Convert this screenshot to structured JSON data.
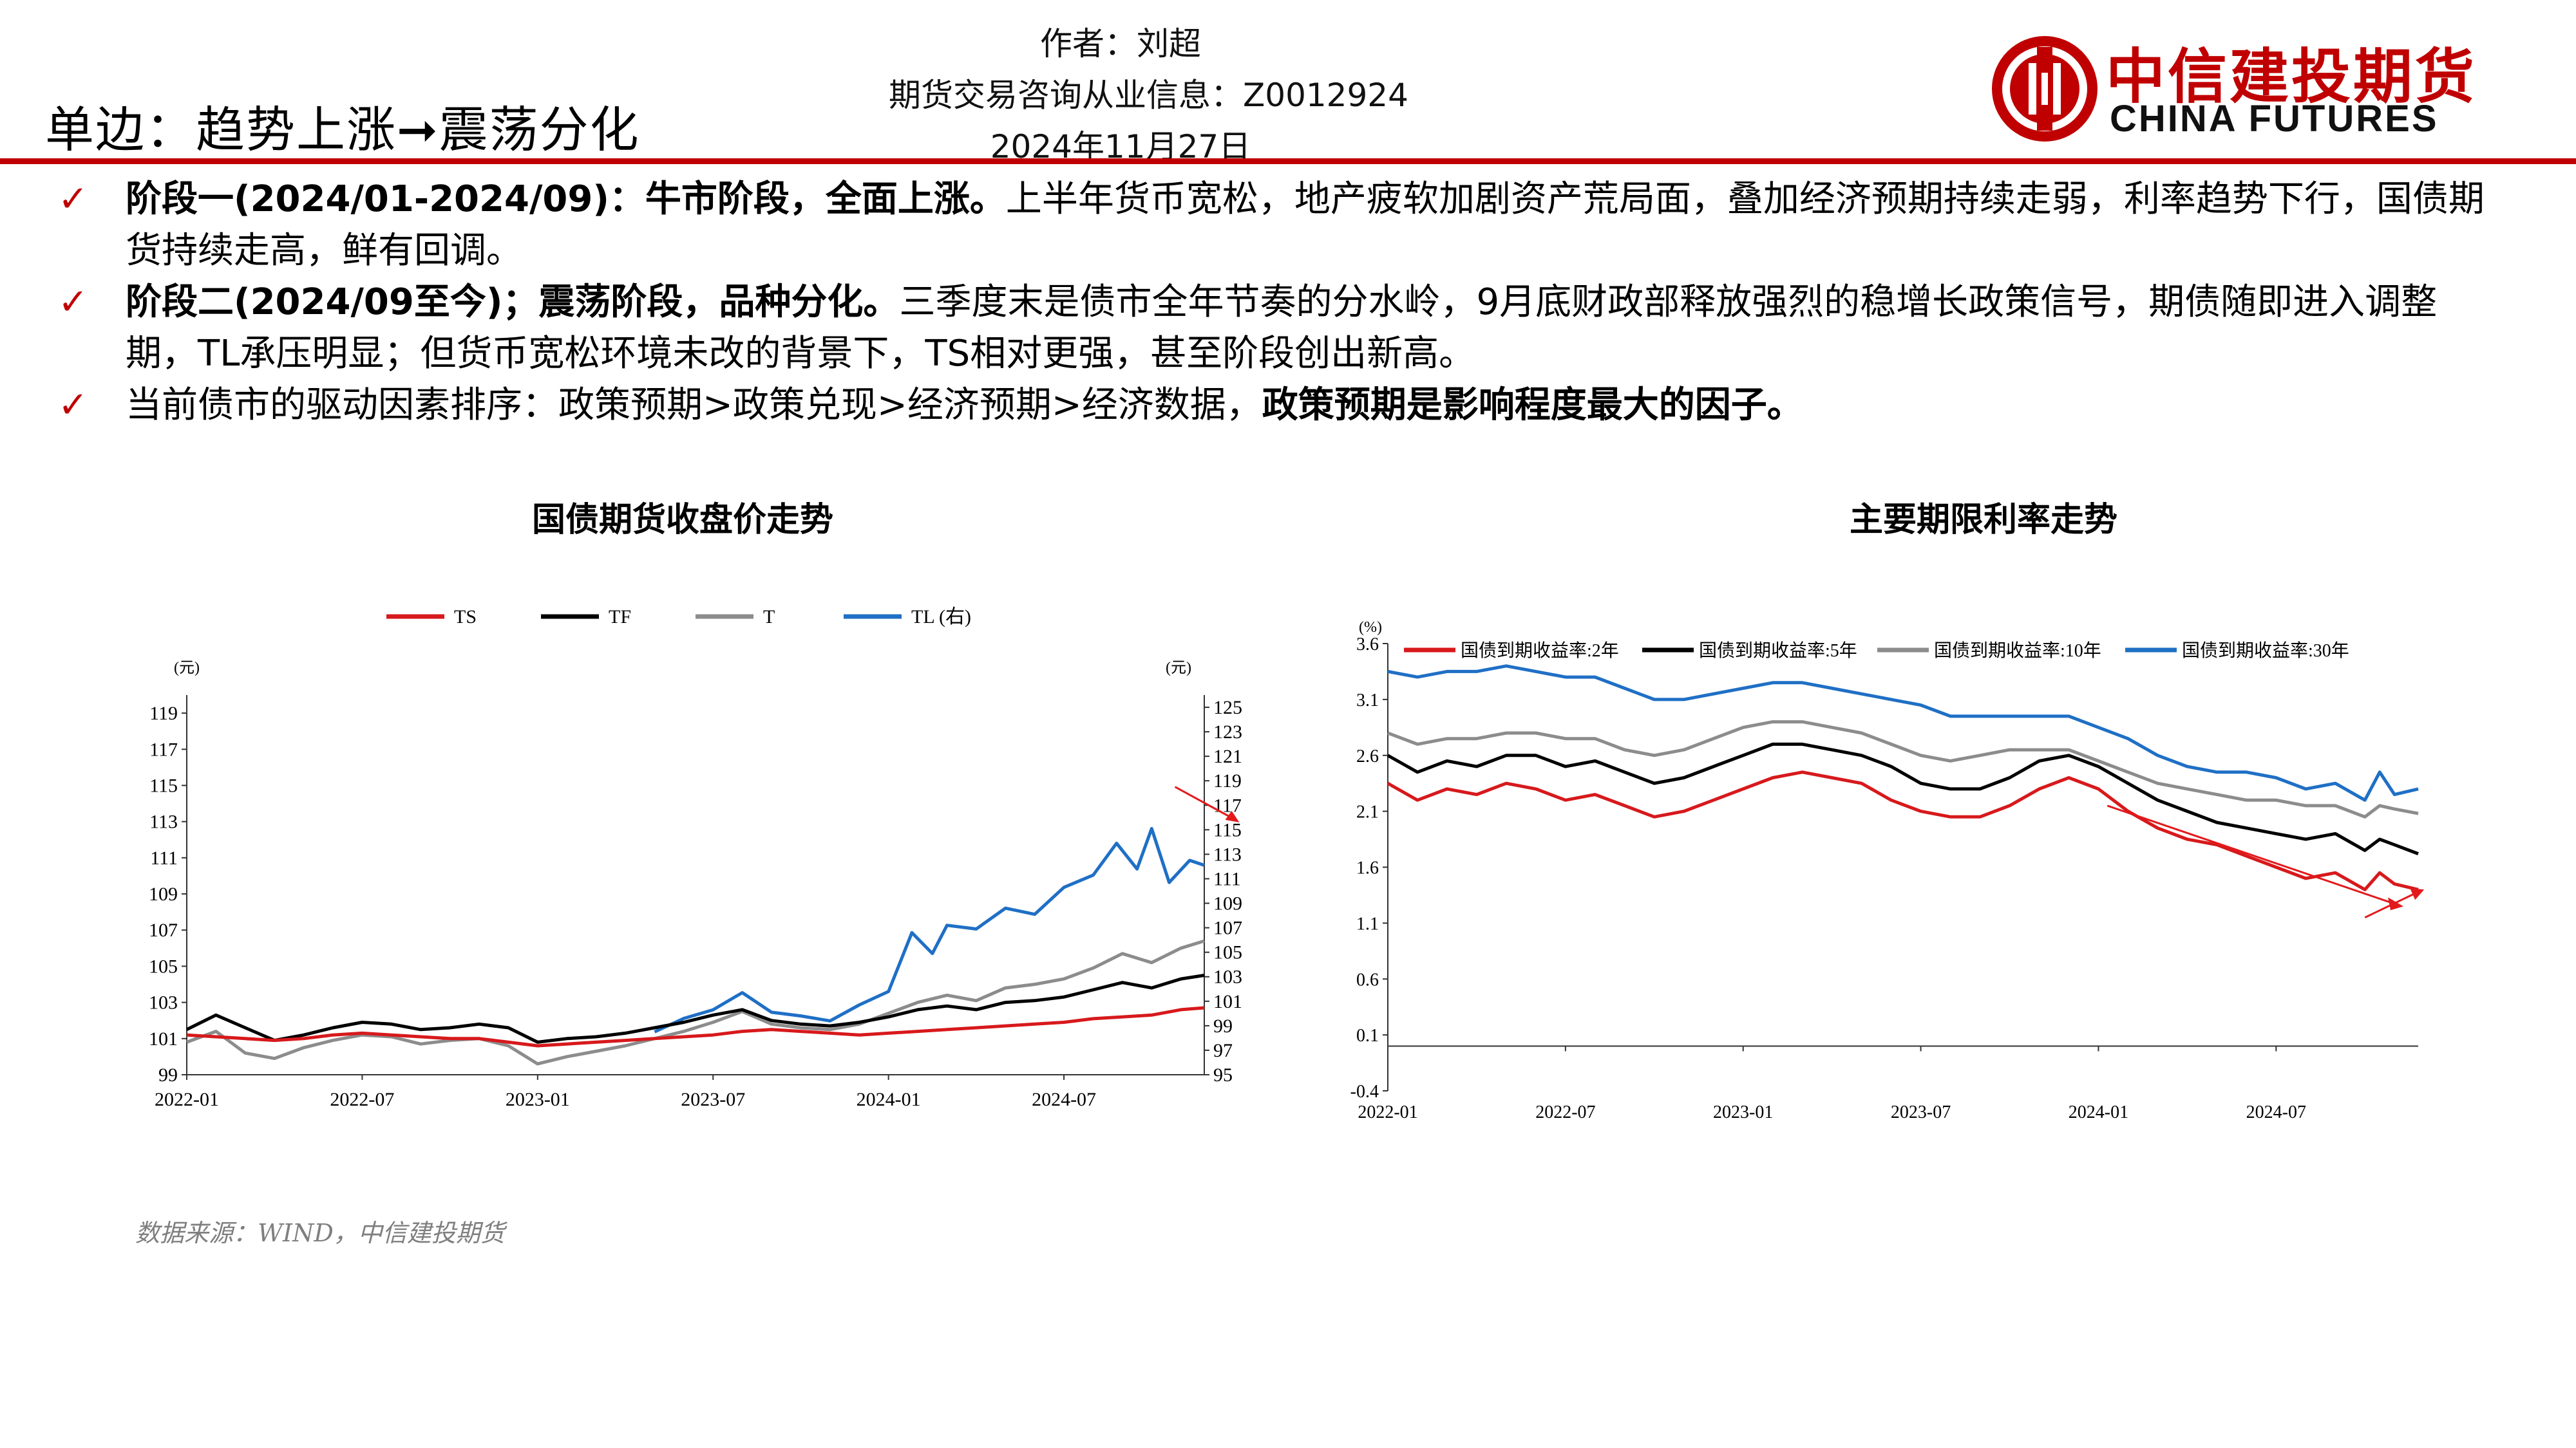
{
  "header": {
    "title": "单边：趋势上涨➞震荡分化",
    "author": "作者：刘超",
    "license": "期货交易咨询从业信息：Z0012924",
    "date": "2024年11月27日"
  },
  "logo": {
    "cn": "中信建投期货",
    "en": "CHINA FUTURES"
  },
  "colors": {
    "brand_red": "#c00000",
    "ts": "#d7191c",
    "tf": "#000000",
    "t": "#8c8c8c",
    "tl": "#1f6fc5"
  },
  "bullets": [
    {
      "bold": "阶段一(2024/01-2024/09)：牛市阶段，全面上涨。",
      "text": "上半年货币宽松，地产疲软加剧资产荒局面，叠加经济预期持续走弱，利率趋势下行，国债期货持续走高，鲜有回调。",
      "tail": ""
    },
    {
      "bold": "阶段二(2024/09至今)；震荡阶段，品种分化。",
      "text": "三季度末是债市全年节奏的分水岭，9月底财政部释放强烈的稳增长政策信号，期债随即进入调整期，TL承压明显；但货币宽松环境未改的背景下，TS相对更强，甚至阶段创出新高。",
      "tail": ""
    },
    {
      "bold": "",
      "text": "当前债市的驱动因素排序：政策预期>政策兑现>经济预期>经济数据，",
      "tail": "政策预期是影响程度最大的因子。"
    }
  ],
  "source": "数据来源：WIND，中信建投期货",
  "chart_data": [
    {
      "type": "line",
      "title": "国债期货收盘价走势",
      "left_unit": "(元)",
      "right_unit": "(元)",
      "x_ticks": [
        "2022-01",
        "2022-07",
        "2023-01",
        "2023-07",
        "2024-01",
        "2024-07"
      ],
      "x_tick_pos": [
        0,
        6,
        12,
        18,
        24,
        30
      ],
      "x_range": [
        0,
        34.8
      ],
      "ylim_left": [
        99,
        120
      ],
      "yticks_left": [
        99,
        101,
        103,
        105,
        107,
        109,
        111,
        113,
        115,
        117,
        119
      ],
      "ylim_right": [
        95,
        126
      ],
      "yticks_right": [
        95,
        97,
        99,
        101,
        103,
        105,
        107,
        109,
        111,
        113,
        115,
        117,
        119,
        121,
        123,
        125
      ],
      "series": [
        {
          "name": "TS",
          "axis": "left",
          "color": "#d7191c",
          "x": [
            0,
            1,
            2,
            3,
            4,
            5,
            6,
            7,
            8,
            9,
            10,
            11,
            12,
            13,
            14,
            15,
            16,
            17,
            18,
            19,
            20,
            21,
            22,
            23,
            24,
            25,
            26,
            27,
            28,
            29,
            30,
            31,
            32,
            33,
            34,
            34.8
          ],
          "y": [
            101.2,
            101.1,
            101.0,
            100.9,
            101.0,
            101.2,
            101.3,
            101.2,
            101.1,
            101.0,
            101.0,
            100.8,
            100.6,
            100.7,
            100.8,
            100.9,
            101.0,
            101.1,
            101.2,
            101.4,
            101.5,
            101.4,
            101.3,
            101.2,
            101.3,
            101.4,
            101.5,
            101.6,
            101.7,
            101.8,
            101.9,
            102.1,
            102.2,
            102.3,
            102.6,
            102.7
          ]
        },
        {
          "name": "TF",
          "axis": "left",
          "color": "#000000",
          "x": [
            0,
            1,
            2,
            3,
            4,
            5,
            6,
            7,
            8,
            9,
            10,
            11,
            12,
            13,
            14,
            15,
            16,
            17,
            18,
            19,
            20,
            21,
            22,
            23,
            24,
            25,
            26,
            27,
            28,
            29,
            30,
            31,
            32,
            33,
            34,
            34.8
          ],
          "y": [
            101.5,
            102.3,
            101.6,
            100.9,
            101.2,
            101.6,
            101.9,
            101.8,
            101.5,
            101.6,
            101.8,
            101.6,
            100.8,
            101.0,
            101.1,
            101.3,
            101.6,
            101.9,
            102.3,
            102.6,
            102.0,
            101.8,
            101.7,
            101.9,
            102.2,
            102.6,
            102.8,
            102.6,
            103.0,
            103.1,
            103.3,
            103.7,
            104.1,
            103.8,
            104.3,
            104.5
          ]
        },
        {
          "name": "T",
          "axis": "left",
          "color": "#8c8c8c",
          "x": [
            0,
            1,
            2,
            3,
            4,
            5,
            6,
            7,
            8,
            9,
            10,
            11,
            12,
            13,
            14,
            15,
            16,
            17,
            18,
            19,
            20,
            21,
            22,
            23,
            24,
            25,
            26,
            27,
            28,
            29,
            30,
            31,
            32,
            33,
            34,
            34.8
          ],
          "y": [
            100.8,
            101.4,
            100.2,
            99.9,
            100.5,
            100.9,
            101.2,
            101.1,
            100.7,
            100.9,
            101.0,
            100.6,
            99.6,
            100.0,
            100.3,
            100.6,
            101.0,
            101.4,
            101.9,
            102.5,
            101.8,
            101.6,
            101.5,
            101.8,
            102.4,
            103.0,
            103.4,
            103.1,
            103.8,
            104.0,
            104.3,
            104.9,
            105.7,
            105.2,
            106.0,
            106.4
          ]
        },
        {
          "name": "TL (右)",
          "axis": "right",
          "color": "#1f6fc5",
          "x": [
            16,
            17,
            18,
            19,
            20,
            21,
            22,
            23,
            24,
            24.8,
            25.5,
            26,
            27,
            28,
            29,
            30,
            31,
            31.8,
            32.5,
            33,
            33.6,
            34.3,
            34.8
          ],
          "y": [
            98.5,
            99.6,
            100.3,
            101.7,
            100.1,
            99.8,
            99.4,
            100.7,
            101.8,
            106.6,
            104.9,
            107.2,
            106.9,
            108.6,
            108.1,
            110.3,
            111.3,
            113.9,
            111.8,
            115.1,
            110.7,
            112.5,
            112.1
          ]
        }
      ]
    },
    {
      "type": "line",
      "title": "主要期限利率走势",
      "unit": "(%)",
      "x_ticks": [
        "2022-01",
        "2022-07",
        "2023-01",
        "2023-07",
        "2024-01",
        "2024-07"
      ],
      "x_tick_pos": [
        0,
        6,
        12,
        18,
        24,
        30
      ],
      "x_range": [
        0,
        34.8
      ],
      "ylim": [
        -0.4,
        3.6
      ],
      "yticks": [
        -0.4,
        0.1,
        0.6,
        1.1,
        1.6,
        2.1,
        2.6,
        3.1,
        3.6
      ],
      "series": [
        {
          "name": "国债到期收益率:2年",
          "color": "#d7191c",
          "x": [
            0,
            1,
            2,
            3,
            4,
            5,
            6,
            7,
            8,
            9,
            10,
            11,
            12,
            13,
            14,
            15,
            16,
            17,
            18,
            19,
            20,
            21,
            22,
            23,
            24,
            25,
            26,
            27,
            28,
            29,
            30,
            31,
            32,
            33,
            33.5,
            34,
            34.8
          ],
          "y": [
            2.35,
            2.2,
            2.3,
            2.25,
            2.35,
            2.3,
            2.2,
            2.25,
            2.15,
            2.05,
            2.1,
            2.2,
            2.3,
            2.4,
            2.45,
            2.4,
            2.35,
            2.2,
            2.1,
            2.05,
            2.05,
            2.15,
            2.3,
            2.4,
            2.3,
            2.1,
            1.95,
            1.85,
            1.8,
            1.7,
            1.6,
            1.5,
            1.55,
            1.4,
            1.55,
            1.45,
            1.4
          ]
        },
        {
          "name": "国债到期收益率:5年",
          "color": "#000000",
          "x": [
            0,
            1,
            2,
            3,
            4,
            5,
            6,
            7,
            8,
            9,
            10,
            11,
            12,
            13,
            14,
            15,
            16,
            17,
            18,
            19,
            20,
            21,
            22,
            23,
            24,
            25,
            26,
            27,
            28,
            29,
            30,
            31,
            32,
            33,
            33.5,
            34,
            34.8
          ],
          "y": [
            2.6,
            2.45,
            2.55,
            2.5,
            2.6,
            2.6,
            2.5,
            2.55,
            2.45,
            2.35,
            2.4,
            2.5,
            2.6,
            2.7,
            2.7,
            2.65,
            2.6,
            2.5,
            2.35,
            2.3,
            2.3,
            2.4,
            2.55,
            2.6,
            2.5,
            2.35,
            2.2,
            2.1,
            2.0,
            1.95,
            1.9,
            1.85,
            1.9,
            1.75,
            1.85,
            1.8,
            1.72
          ]
        },
        {
          "name": "国债到期收益率:10年",
          "color": "#8c8c8c",
          "x": [
            0,
            1,
            2,
            3,
            4,
            5,
            6,
            7,
            8,
            9,
            10,
            11,
            12,
            13,
            14,
            15,
            16,
            17,
            18,
            19,
            20,
            21,
            22,
            23,
            24,
            25,
            26,
            27,
            28,
            29,
            30,
            31,
            32,
            33,
            33.5,
            34,
            34.8
          ],
          "y": [
            2.8,
            2.7,
            2.75,
            2.75,
            2.8,
            2.8,
            2.75,
            2.75,
            2.65,
            2.6,
            2.65,
            2.75,
            2.85,
            2.9,
            2.9,
            2.85,
            2.8,
            2.7,
            2.6,
            2.55,
            2.6,
            2.65,
            2.65,
            2.65,
            2.55,
            2.45,
            2.35,
            2.3,
            2.25,
            2.2,
            2.2,
            2.15,
            2.15,
            2.05,
            2.15,
            2.12,
            2.08
          ]
        },
        {
          "name": "国债到期收益率:30年",
          "color": "#1f6fc5",
          "x": [
            0,
            1,
            2,
            3,
            4,
            5,
            6,
            7,
            8,
            9,
            10,
            11,
            12,
            13,
            14,
            15,
            16,
            17,
            18,
            19,
            20,
            21,
            22,
            23,
            24,
            25,
            26,
            27,
            28,
            29,
            30,
            31,
            32,
            33,
            33.5,
            34,
            34.8
          ],
          "y": [
            3.35,
            3.3,
            3.35,
            3.35,
            3.4,
            3.35,
            3.3,
            3.3,
            3.2,
            3.1,
            3.1,
            3.15,
            3.2,
            3.25,
            3.25,
            3.2,
            3.15,
            3.1,
            3.05,
            2.95,
            2.95,
            2.95,
            2.95,
            2.95,
            2.85,
            2.75,
            2.6,
            2.5,
            2.45,
            2.45,
            2.4,
            2.3,
            2.35,
            2.2,
            2.45,
            2.25,
            2.3
          ]
        }
      ]
    }
  ]
}
